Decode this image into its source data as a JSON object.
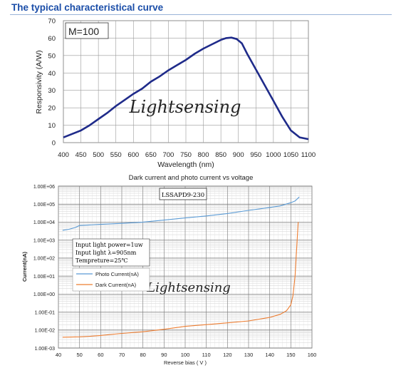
{
  "heading": "The typical characteristical curve",
  "chart_data": [
    {
      "type": "line",
      "title": "",
      "xlabel": "Wavelength (nm)",
      "ylabel": "Responsivity (A/W)",
      "xlim": [
        400,
        1100
      ],
      "ylim": [
        0,
        70
      ],
      "x_ticks": [
        "400",
        "450",
        "500",
        "550",
        "600",
        "650",
        "700",
        "750",
        "800",
        "850",
        "900",
        "950",
        "1000",
        "1050",
        "1100"
      ],
      "y_ticks": [
        "0",
        "10",
        "20",
        "30",
        "40",
        "50",
        "60",
        "70"
      ],
      "annotation": "M=100",
      "watermark": "Lightsensing",
      "grid": true,
      "series": [
        {
          "color": "#1f2b8a",
          "points": [
            [
              400,
              3
            ],
            [
              425,
              5
            ],
            [
              450,
              7
            ],
            [
              475,
              10
            ],
            [
              500,
              13.5
            ],
            [
              525,
              17
            ],
            [
              550,
              21
            ],
            [
              575,
              24.5
            ],
            [
              600,
              28
            ],
            [
              625,
              31
            ],
            [
              650,
              35
            ],
            [
              675,
              38
            ],
            [
              700,
              41.5
            ],
            [
              725,
              44.5
            ],
            [
              750,
              47.5
            ],
            [
              775,
              51
            ],
            [
              800,
              54
            ],
            [
              825,
              56.5
            ],
            [
              850,
              59
            ],
            [
              865,
              60
            ],
            [
              880,
              60.3
            ],
            [
              895,
              59.5
            ],
            [
              910,
              57
            ],
            [
              925,
              51
            ],
            [
              950,
              42
            ],
            [
              975,
              33
            ],
            [
              1000,
              24
            ],
            [
              1025,
              15
            ],
            [
              1050,
              7
            ],
            [
              1075,
              3
            ],
            [
              1100,
              2
            ]
          ]
        }
      ]
    },
    {
      "type": "line",
      "title": "Dark current and photo current vs voltage",
      "xlabel": "Reverse bias ( V )",
      "ylabel": "Current(nA)",
      "yscale": "log",
      "xlim": [
        40,
        160
      ],
      "ylim": [
        0.001,
        1000000
      ],
      "x_ticks": [
        "40",
        "50",
        "60",
        "70",
        "80",
        "90",
        "100",
        "110",
        "120",
        "130",
        "140",
        "150",
        "160"
      ],
      "y_ticks": [
        "1.00E-03",
        "1.00E-02",
        "1.00E-01",
        "1.00E+00",
        "1.00E+01",
        "1.00E+02",
        "1.00E+03",
        "1.00E+04",
        "1.00E+05",
        "1.00E+06"
      ],
      "model_label": "LSSAPD9-230",
      "conditions": [
        "Input light power=1uw",
        "Input light λ=905nm",
        "Tempreture=25℃"
      ],
      "watermark": "Lightsensing",
      "grid": true,
      "legend_position": "left",
      "series": [
        {
          "name": "Photo Current(nA)",
          "color": "#5b9bd5",
          "points": [
            [
              42,
              3500
            ],
            [
              45,
              4000
            ],
            [
              48,
              5000
            ],
            [
              50,
              6500
            ],
            [
              60,
              7500
            ],
            [
              70,
              8500
            ],
            [
              80,
              10000
            ],
            [
              90,
              13000
            ],
            [
              100,
              17000
            ],
            [
              110,
              22000
            ],
            [
              120,
              30000
            ],
            [
              130,
              45000
            ],
            [
              140,
              65000
            ],
            [
              145,
              80000
            ],
            [
              150,
              120000
            ],
            [
              152,
              150000
            ],
            [
              154,
              250000
            ]
          ]
        },
        {
          "name": "Dark Current(nA)",
          "color": "#ed7d31",
          "points": [
            [
              42,
              0.004
            ],
            [
              50,
              0.0042
            ],
            [
              55,
              0.0045
            ],
            [
              60,
              0.005
            ],
            [
              70,
              0.0065
            ],
            [
              80,
              0.008
            ],
            [
              90,
              0.011
            ],
            [
              100,
              0.016
            ],
            [
              110,
              0.02
            ],
            [
              120,
              0.025
            ],
            [
              130,
              0.032
            ],
            [
              140,
              0.05
            ],
            [
              145,
              0.075
            ],
            [
              148,
              0.12
            ],
            [
              150,
              0.25
            ],
            [
              151,
              0.8
            ],
            [
              152,
              10
            ],
            [
              153,
              1000
            ],
            [
              153.5,
              10000
            ]
          ]
        }
      ]
    }
  ]
}
